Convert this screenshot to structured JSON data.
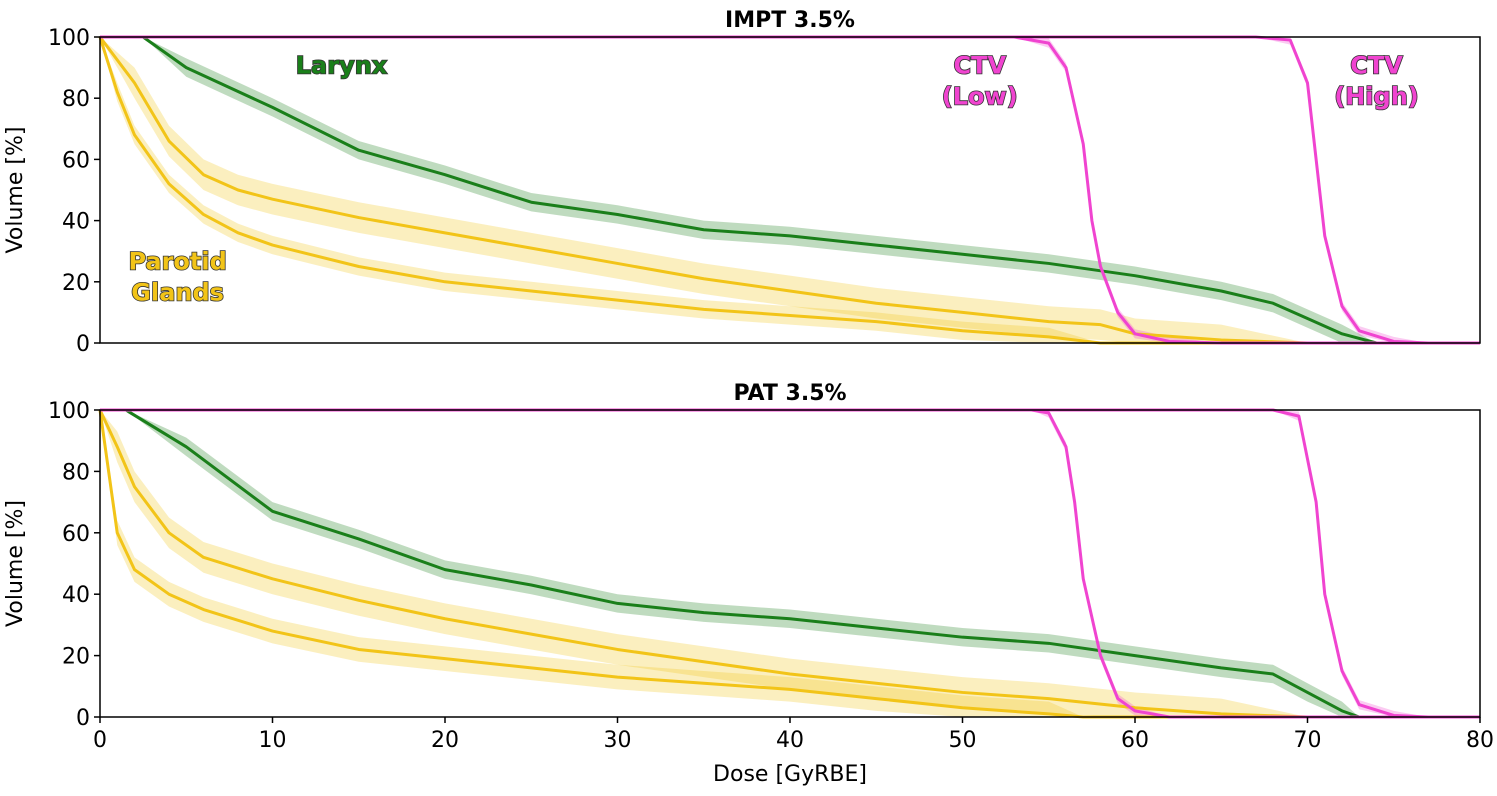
{
  "chart_data": [
    {
      "type": "line",
      "title": "IMPT 3.5%",
      "xlabel": "",
      "ylabel": "Volume [%]",
      "xlim": [
        0,
        80
      ],
      "ylim": [
        0,
        100
      ],
      "xticks": [],
      "yticks": [
        0,
        20,
        40,
        60,
        80,
        100
      ],
      "grid": false,
      "annotations": [
        {
          "text": [
            "Larynx"
          ],
          "color": "#1a7f1a",
          "at": [
            14,
            88
          ]
        },
        {
          "text": [
            "CTV",
            "(Low)"
          ],
          "color": "#f044d0",
          "at": [
            51,
            88
          ]
        },
        {
          "text": [
            "CTV",
            "(High)"
          ],
          "color": "#f044d0",
          "at": [
            74,
            88
          ]
        },
        {
          "text": [
            "Parotid",
            "Glands"
          ],
          "color": "#f2c418",
          "at": [
            4.5,
            24
          ]
        }
      ],
      "series": [
        {
          "id": "larynx",
          "color": "#1a7f1a",
          "band": 3,
          "x": [
            0,
            2.5,
            5,
            10,
            15,
            20,
            25,
            30,
            35,
            40,
            45,
            50,
            55,
            60,
            65,
            68,
            70,
            72,
            74,
            80
          ],
          "y": [
            100,
            100,
            90,
            77,
            63,
            55,
            46,
            42,
            37,
            35,
            32,
            29,
            26,
            22,
            17,
            13,
            8,
            3,
            0,
            0
          ]
        },
        {
          "id": "parotid-upper",
          "color": "#f2c418",
          "band": 5,
          "x": [
            0,
            2,
            4,
            6,
            8,
            10,
            15,
            20,
            25,
            30,
            35,
            40,
            45,
            50,
            55,
            58,
            60,
            65,
            70,
            80
          ],
          "y": [
            100,
            85,
            66,
            55,
            50,
            47,
            41,
            36,
            31,
            26,
            21,
            17,
            13,
            10,
            7,
            6,
            3,
            1,
            0,
            0
          ]
        },
        {
          "id": "parotid-lower",
          "color": "#f2c418",
          "band": 3,
          "x": [
            0,
            1,
            2,
            4,
            6,
            8,
            10,
            15,
            20,
            25,
            30,
            35,
            40,
            45,
            50,
            55,
            58,
            80
          ],
          "y": [
            100,
            82,
            68,
            52,
            42,
            36,
            32,
            25,
            20,
            17,
            14,
            11,
            9,
            7,
            4,
            2,
            0,
            0
          ]
        },
        {
          "id": "ctv-low",
          "color": "#f044d0",
          "band": 1.5,
          "x": [
            0,
            53,
            55,
            56,
            57,
            57.5,
            58,
            59,
            60,
            62,
            65,
            80
          ],
          "y": [
            100,
            100,
            98,
            90,
            65,
            40,
            25,
            10,
            3,
            0.5,
            0,
            0
          ]
        },
        {
          "id": "ctv-high",
          "color": "#f044d0",
          "band": 1.5,
          "x": [
            0,
            67,
            69,
            70,
            70.5,
            71,
            72,
            73,
            75,
            77,
            80
          ],
          "y": [
            100,
            100,
            99,
            85,
            60,
            35,
            12,
            4,
            0.5,
            0,
            0
          ]
        }
      ]
    },
    {
      "type": "line",
      "title": "PAT 3.5%",
      "xlabel": "Dose [GyRBE]",
      "ylabel": "Volume [%]",
      "xlim": [
        0,
        80
      ],
      "ylim": [
        0,
        100
      ],
      "xticks": [
        0,
        10,
        20,
        30,
        40,
        50,
        60,
        70,
        80
      ],
      "yticks": [
        0,
        20,
        40,
        60,
        80,
        100
      ],
      "grid": false,
      "annotations": [],
      "series": [
        {
          "id": "larynx",
          "color": "#1a7f1a",
          "band": 3,
          "x": [
            0,
            1.5,
            5,
            10,
            15,
            20,
            25,
            30,
            35,
            40,
            45,
            50,
            55,
            60,
            65,
            68,
            70,
            72,
            73,
            80
          ],
          "y": [
            100,
            100,
            88,
            67,
            58,
            48,
            43,
            37,
            34,
            32,
            29,
            26,
            24,
            20,
            16,
            14,
            8,
            2,
            0,
            0
          ]
        },
        {
          "id": "parotid-upper",
          "color": "#f2c418",
          "band": 5,
          "x": [
            0,
            1,
            2,
            4,
            6,
            10,
            15,
            20,
            25,
            30,
            35,
            40,
            45,
            50,
            55,
            60,
            65,
            70,
            80
          ],
          "y": [
            100,
            88,
            75,
            60,
            52,
            45,
            38,
            32,
            27,
            22,
            18,
            14,
            11,
            8,
            6,
            3,
            1,
            0,
            0
          ]
        },
        {
          "id": "parotid-lower",
          "color": "#f2c418",
          "band": 4,
          "x": [
            0,
            1,
            2,
            4,
            6,
            10,
            15,
            20,
            25,
            30,
            35,
            40,
            45,
            50,
            55,
            57,
            80
          ],
          "y": [
            100,
            60,
            48,
            40,
            35,
            28,
            22,
            19,
            16,
            13,
            11,
            9,
            6,
            3,
            1,
            0,
            0
          ]
        },
        {
          "id": "ctv-low",
          "color": "#f044d0",
          "band": 1.5,
          "x": [
            0,
            54,
            55,
            56,
            56.5,
            57,
            58,
            59,
            60,
            62,
            80
          ],
          "y": [
            100,
            100,
            99,
            88,
            70,
            45,
            20,
            6,
            2,
            0,
            0
          ]
        },
        {
          "id": "ctv-high",
          "color": "#f044d0",
          "band": 1.5,
          "x": [
            0,
            68,
            69.5,
            70.5,
            71,
            72,
            73,
            75,
            77,
            80
          ],
          "y": [
            100,
            100,
            98,
            70,
            40,
            15,
            4,
            0.5,
            0,
            0
          ]
        }
      ]
    }
  ]
}
